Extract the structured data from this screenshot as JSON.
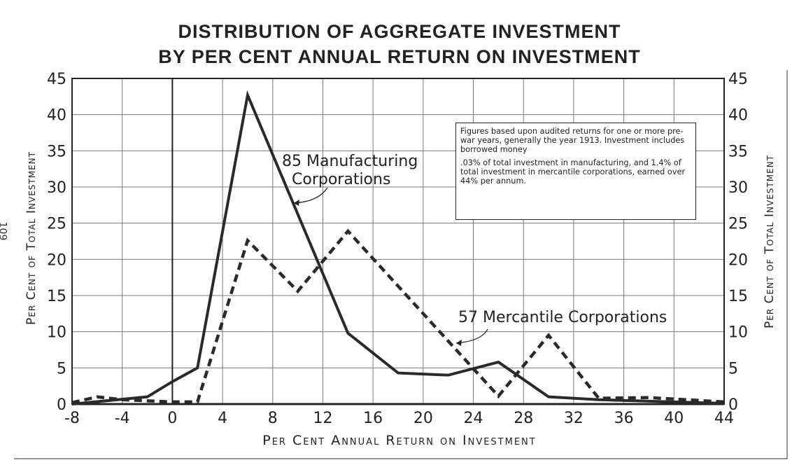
{
  "page_number": "109",
  "chart_data": {
    "type": "line",
    "title": [
      "DISTRIBUTION OF AGGREGATE INVESTMENT",
      "BY PER CENT ANNUAL RETURN ON INVESTMENT"
    ],
    "xlabel": "Per Cent Annual Return on Investment",
    "ylabel": "Per Cent of Total Investment",
    "xlim": [
      -8,
      44
    ],
    "ylim": [
      0,
      45
    ],
    "xticks": [
      "-8",
      "-4",
      "0",
      "4",
      "8",
      "12",
      "16",
      "20",
      "24",
      "28",
      "32",
      "36",
      "40",
      "44"
    ],
    "yticks": [
      "0",
      "5",
      "10",
      "15",
      "20",
      "25",
      "30",
      "35",
      "40",
      "45"
    ],
    "grid": true,
    "series": [
      {
        "name": "85 Manufacturing Corporations",
        "label_lines": [
          "85 Manufacturing",
          "Corporations"
        ],
        "style": "solid",
        "points": [
          [
            -8,
            0
          ],
          [
            -2,
            1
          ],
          [
            0,
            3.1
          ],
          [
            2,
            5
          ],
          [
            6,
            42.7
          ],
          [
            14,
            9.8
          ],
          [
            18,
            4.3
          ],
          [
            22,
            4
          ],
          [
            26,
            5.8
          ],
          [
            30,
            1
          ],
          [
            34,
            0.6
          ],
          [
            38,
            0.4
          ],
          [
            44,
            0.1
          ]
        ]
      },
      {
        "name": "57 Mercantile Corporations",
        "label_lines": [
          "57 Mercantile Corporations"
        ],
        "style": "dashed",
        "points": [
          [
            -8,
            0.2
          ],
          [
            -6,
            1
          ],
          [
            -4,
            0.6
          ],
          [
            0,
            0.3
          ],
          [
            2,
            0.3
          ],
          [
            6,
            22.6
          ],
          [
            10,
            15.6
          ],
          [
            14,
            23.9
          ],
          [
            26,
            1.1
          ],
          [
            30,
            9.5
          ],
          [
            34,
            0.8
          ],
          [
            38,
            0.9
          ],
          [
            44,
            0.3
          ]
        ]
      }
    ],
    "annotation": [
      "Figures based upon audited returns for one or more pre-war years, generally the year 1913. Investment includes borrowed money",
      ".03% of total investment in manufacturing, and 1.4% of total investment in mercantile corporations, earned over 44% per annum."
    ]
  }
}
